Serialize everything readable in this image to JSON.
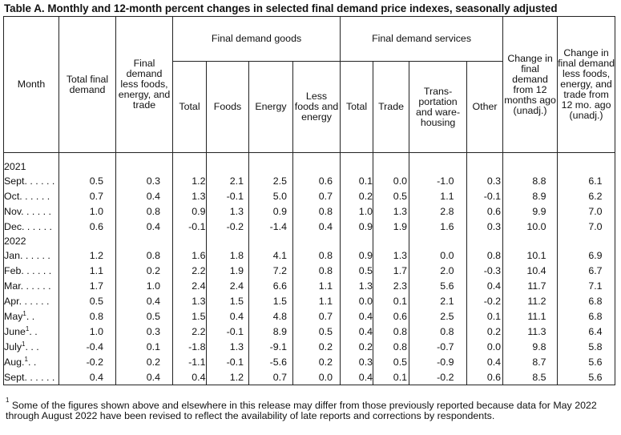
{
  "title": "Table A. Monthly and 12-month percent changes in selected final demand price indexes, seasonally adjusted",
  "headers": {
    "month": "Month",
    "total_final_demand": "Total final demand",
    "final_demand_less": "Final demand less foods, energy, and trade",
    "goods_group": "Final demand goods",
    "services_group": "Final demand services",
    "goods_total": "Total",
    "goods_foods": "Foods",
    "goods_energy": "Energy",
    "goods_less": "Less foods and energy",
    "services_total": "Total",
    "services_trade": "Trade",
    "services_transport": "Trans-portation and ware-housing",
    "services_other": "Other",
    "change_12": "Change in final demand from 12 months ago (unadj.)",
    "change_12_less": "Change in final demand less foods, energy, and trade from 12 mo. ago (unadj.)"
  },
  "years": [
    "2021",
    "2022"
  ],
  "rows_2021": [
    {
      "month": "Sept. . . . . .",
      "sup": "",
      "values": [
        "0.5",
        "0.3",
        "1.2",
        "2.1",
        "2.5",
        "0.6",
        "0.1",
        "0.0",
        "-1.0",
        "0.3",
        "8.8",
        "6.1"
      ]
    },
    {
      "month": "Oct. . . . . .",
      "sup": "",
      "values": [
        "0.7",
        "0.4",
        "1.3",
        "-0.1",
        "5.0",
        "0.7",
        "0.2",
        "0.5",
        "1.1",
        "-0.1",
        "8.9",
        "6.2"
      ]
    },
    {
      "month": "Nov. . . . . .",
      "sup": "",
      "values": [
        "1.0",
        "0.8",
        "0.9",
        "1.3",
        "0.9",
        "0.8",
        "1.0",
        "1.3",
        "2.8",
        "0.6",
        "9.9",
        "7.0"
      ]
    },
    {
      "month": "Dec. . . . . .",
      "sup": "",
      "values": [
        "0.6",
        "0.4",
        "-0.1",
        "-0.2",
        "-1.4",
        "0.4",
        "0.9",
        "1.9",
        "1.6",
        "0.3",
        "10.0",
        "7.0"
      ]
    }
  ],
  "rows_2022": [
    {
      "month": "Jan. . . . . .",
      "sup": "",
      "values": [
        "1.2",
        "0.8",
        "1.6",
        "1.8",
        "4.1",
        "0.8",
        "0.9",
        "1.3",
        "0.0",
        "0.8",
        "10.1",
        "6.9"
      ]
    },
    {
      "month": "Feb. . . . . .",
      "sup": "",
      "values": [
        "1.1",
        "0.2",
        "2.2",
        "1.9",
        "7.2",
        "0.8",
        "0.5",
        "1.7",
        "2.0",
        "-0.3",
        "10.4",
        "6.7"
      ]
    },
    {
      "month": "Mar. . . . . .",
      "sup": "",
      "values": [
        "1.7",
        "1.0",
        "2.4",
        "2.4",
        "6.6",
        "1.1",
        "1.3",
        "2.3",
        "5.6",
        "0.4",
        "11.7",
        "7.1"
      ]
    },
    {
      "month": "Apr. . . . . .",
      "sup": "",
      "values": [
        "0.5",
        "0.4",
        "1.3",
        "1.5",
        "1.5",
        "1.1",
        "0.0",
        "0.1",
        "2.1",
        "-0.2",
        "11.2",
        "6.8"
      ]
    },
    {
      "month": "May",
      "sup": "1",
      "suffix": ". .",
      "values": [
        "0.8",
        "0.5",
        "1.5",
        "0.4",
        "4.8",
        "0.7",
        "0.4",
        "0.6",
        "2.5",
        "0.1",
        "11.1",
        "6.8"
      ]
    },
    {
      "month": "June",
      "sup": "1",
      "suffix": ". .",
      "values": [
        "1.0",
        "0.3",
        "2.2",
        "-0.1",
        "8.9",
        "0.5",
        "0.4",
        "0.8",
        "0.8",
        "0.2",
        "11.3",
        "6.4"
      ]
    },
    {
      "month": "July",
      "sup": "1",
      "suffix": ". . .",
      "values": [
        "-0.4",
        "0.1",
        "-1.8",
        "1.3",
        "-9.1",
        "0.2",
        "0.2",
        "0.8",
        "-0.7",
        "0.0",
        "9.8",
        "5.8"
      ]
    },
    {
      "month": "Aug.",
      "sup": "1",
      "suffix": ". .",
      "values": [
        "-0.2",
        "0.2",
        "-1.1",
        "-0.1",
        "-5.6",
        "0.2",
        "0.3",
        "0.5",
        "-0.9",
        "0.4",
        "8.7",
        "5.6"
      ]
    },
    {
      "month": "Sept. . . . . .",
      "sup": "",
      "values": [
        "0.4",
        "0.4",
        "0.4",
        "1.2",
        "0.7",
        "0.0",
        "0.4",
        "0.1",
        "-0.2",
        "0.6",
        "8.5",
        "5.6"
      ]
    }
  ],
  "footnote": {
    "marker": "1",
    "text": "Some of the figures shown above and elsewhere in this release may differ from those previously reported because data for May 2022 through August 2022 have been revised to reflect the availability of late reports and corrections by respondents."
  }
}
